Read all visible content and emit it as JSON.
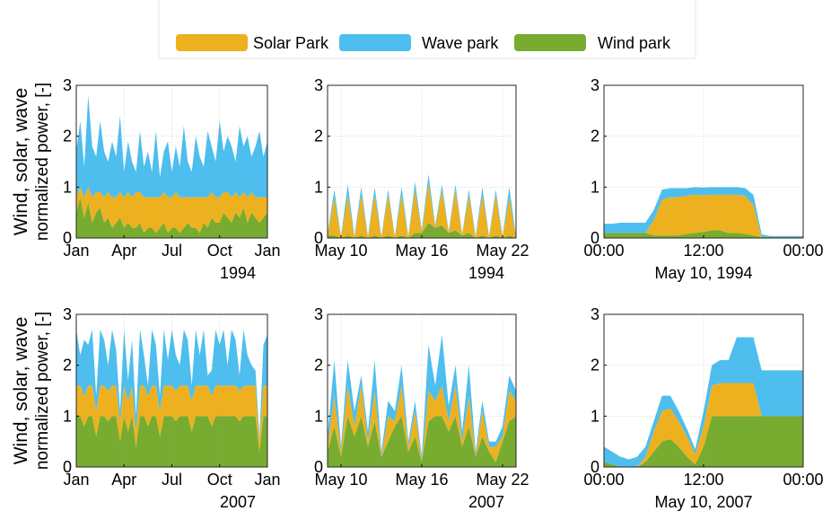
{
  "chart_data": [
    {
      "type": "stacked-area",
      "ylabel": [
        "Wind, solar, wave",
        "normalized power, [-]"
      ],
      "xlabel": "1994",
      "categories": [
        "Jan",
        null,
        null,
        null,
        null,
        null,
        null,
        null,
        null,
        null,
        null,
        null,
        "Apr",
        null,
        null,
        null,
        null,
        null,
        null,
        null,
        null,
        null,
        null,
        null,
        "Jul",
        null,
        null,
        null,
        null,
        null,
        null,
        null,
        null,
        null,
        null,
        null,
        "Oct",
        null,
        null,
        null,
        null,
        null,
        null,
        null,
        null,
        null,
        null,
        null,
        "Jan"
      ],
      "series": [
        {
          "name": "Solar Park",
          "color": "#EDB120",
          "values": [
            0.3,
            0.2,
            0.4,
            0.3,
            0.5,
            0.4,
            0.3,
            0.5,
            0.5,
            0.6,
            0.5,
            0.5,
            0.6,
            0.6,
            0.6,
            0.7,
            0.6,
            0.7,
            0.6,
            0.6,
            0.7,
            0.6,
            0.6,
            0.7,
            0.6,
            0.7,
            0.7,
            0.6,
            0.5,
            0.6,
            0.6,
            0.7,
            0.5,
            0.6,
            0.5,
            0.5,
            0.5,
            0.4,
            0.5,
            0.5,
            0.4,
            0.4,
            0.3,
            0.5,
            0.4,
            0.4,
            0.5,
            0.4,
            0.3
          ]
        },
        {
          "name": "Wave park",
          "color": "#4DBEEE",
          "values": [
            0.9,
            1.3,
            0.6,
            1.8,
            1.0,
            0.7,
            1.4,
            0.9,
            0.6,
            1.1,
            0.8,
            1.5,
            0.5,
            1.0,
            0.7,
            0.4,
            1.2,
            0.6,
            0.9,
            0.5,
            1.3,
            0.4,
            0.8,
            1.1,
            0.5,
            0.9,
            0.6,
            1.4,
            0.7,
            0.5,
            1.2,
            0.8,
            0.6,
            1.3,
            0.9,
            0.7,
            1.5,
            0.8,
            1.1,
            1.0,
            0.6,
            1.4,
            0.9,
            1.2,
            0.7,
            1.0,
            1.3,
            0.8,
            1.1
          ]
        },
        {
          "name": "Wind park",
          "color": "#77AC30",
          "values": [
            0.5,
            0.8,
            0.4,
            0.7,
            0.3,
            0.5,
            0.6,
            0.3,
            0.4,
            0.2,
            0.3,
            0.4,
            0.2,
            0.3,
            0.2,
            0.2,
            0.3,
            0.1,
            0.2,
            0.2,
            0.1,
            0.2,
            0.3,
            0.1,
            0.2,
            0.2,
            0.1,
            0.2,
            0.3,
            0.2,
            0.2,
            0.1,
            0.3,
            0.2,
            0.4,
            0.3,
            0.3,
            0.5,
            0.4,
            0.3,
            0.5,
            0.4,
            0.6,
            0.3,
            0.5,
            0.4,
            0.3,
            0.4,
            0.5
          ]
        }
      ],
      "ylim": [
        0,
        3
      ],
      "yticks": [
        0,
        1,
        2,
        3
      ],
      "grid": true
    },
    {
      "type": "stacked-area",
      "xlabel": "1994",
      "categories": [
        null,
        null,
        "May 10",
        null,
        null,
        null,
        null,
        null,
        null,
        null,
        null,
        null,
        null,
        null,
        "May 16",
        null,
        null,
        null,
        null,
        null,
        null,
        null,
        null,
        null,
        null,
        null,
        "May 22",
        null,
        null
      ],
      "series": [
        {
          "color": "#EDB120",
          "values": [
            0,
            0.75,
            0,
            0.8,
            0,
            0.8,
            0,
            0.8,
            0,
            0.8,
            0,
            0.8,
            0,
            0.85,
            0,
            0.8,
            0,
            0.7,
            0,
            0.8,
            0,
            0.75,
            0,
            0.8,
            0,
            0.8,
            0,
            0.75,
            0
          ]
        },
        {
          "color": "#4DBEEE",
          "values": [
            0.03,
            0.15,
            0.03,
            0.2,
            0.03,
            0.15,
            0.03,
            0.15,
            0.03,
            0.1,
            0.03,
            0.15,
            0.03,
            0.15,
            0.05,
            0.15,
            0.05,
            0.1,
            0.03,
            0.1,
            0.03,
            0.1,
            0.03,
            0.15,
            0.03,
            0.1,
            0.03,
            0.2,
            0.03
          ]
        },
        {
          "color": "#77AC30",
          "values": [
            0.05,
            0.05,
            0,
            0.05,
            0,
            0.05,
            0,
            0.05,
            0,
            0.05,
            0,
            0.05,
            0,
            0.1,
            0.1,
            0.3,
            0.2,
            0.25,
            0.1,
            0.15,
            0.05,
            0.1,
            0,
            0.05,
            0,
            0.05,
            0,
            0.05,
            0
          ]
        }
      ],
      "ylim": [
        0,
        3
      ],
      "yticks": [
        0,
        1,
        2,
        3
      ],
      "grid": true
    },
    {
      "type": "stacked-area",
      "xlabel": "May 10, 1994",
      "categories": [
        "00:00",
        null,
        null,
        null,
        null,
        null,
        null,
        null,
        null,
        null,
        null,
        null,
        "12:00",
        null,
        null,
        null,
        null,
        null,
        null,
        null,
        null,
        null,
        null,
        null,
        "00:00"
      ],
      "series": [
        {
          "color": "#EDB120",
          "values": [
            0,
            0,
            0,
            0,
            0,
            0,
            0.3,
            0.7,
            0.75,
            0.75,
            0.75,
            0.75,
            0.72,
            0.7,
            0.7,
            0.75,
            0.75,
            0.75,
            0.6,
            0,
            0,
            0,
            0,
            0,
            0
          ]
        },
        {
          "color": "#4DBEEE",
          "values": [
            0.18,
            0.18,
            0.2,
            0.2,
            0.2,
            0.2,
            0.2,
            0.2,
            0.18,
            0.18,
            0.15,
            0.15,
            0.15,
            0.15,
            0.15,
            0.15,
            0.15,
            0.15,
            0.2,
            0.05,
            0.02,
            0.02,
            0.02,
            0.02,
            0.02
          ]
        },
        {
          "color": "#77AC30",
          "values": [
            0.1,
            0.1,
            0.1,
            0.1,
            0.1,
            0.1,
            0.05,
            0.05,
            0.05,
            0.05,
            0.08,
            0.1,
            0.12,
            0.15,
            0.15,
            0.1,
            0.1,
            0.08,
            0.05,
            0.02,
            0.02,
            0.02,
            0.02,
            0.02,
            0.02
          ]
        }
      ],
      "ylim": [
        0,
        3
      ],
      "yticks": [
        0,
        1,
        2,
        3
      ],
      "grid": true
    },
    {
      "type": "stacked-area",
      "ylabel": [
        "Wind, solar, wave",
        "normalized power, [-]"
      ],
      "xlabel": "2007",
      "categories": [
        "Jan",
        null,
        null,
        null,
        null,
        null,
        null,
        null,
        null,
        null,
        null,
        null,
        "Apr",
        null,
        null,
        null,
        null,
        null,
        null,
        null,
        null,
        null,
        null,
        null,
        "Jul",
        null,
        null,
        null,
        null,
        null,
        null,
        null,
        null,
        null,
        null,
        null,
        "Oct",
        null,
        null,
        null,
        null,
        null,
        null,
        null,
        null,
        null,
        null,
        null,
        "Jan"
      ],
      "series": [
        {
          "color": "#EDB120",
          "values": [
            0.6,
            0.6,
            0.6,
            0.6,
            0.6,
            0.5,
            0.6,
            0.6,
            0.6,
            0.6,
            0.6,
            0.4,
            0.6,
            0.6,
            0.6,
            0.3,
            0.6,
            0.6,
            0.6,
            0.6,
            0.6,
            0.5,
            0.6,
            0.6,
            0.6,
            0.6,
            0.6,
            0.6,
            0.6,
            0.6,
            0.6,
            0.6,
            0.6,
            0.6,
            0.6,
            0.6,
            0.6,
            0.6,
            0.6,
            0.6,
            0.6,
            0.6,
            0.6,
            0.6,
            0.6,
            0.6,
            0.2,
            0.6,
            0.6
          ]
        },
        {
          "color": "#4DBEEE",
          "values": [
            1.1,
            0.6,
            1.1,
            0.8,
            1.1,
            0.3,
            1.1,
            0.9,
            0.5,
            1.1,
            0.7,
            0.2,
            1.1,
            0.4,
            0.9,
            0.3,
            1.1,
            0.6,
            0.2,
            1.1,
            0.8,
            0.3,
            1.1,
            0.5,
            1.1,
            0.7,
            0.4,
            1.1,
            0.9,
            0.3,
            1.1,
            0.6,
            1.1,
            0.2,
            0.5,
            1.1,
            0.8,
            1.1,
            0.4,
            1.1,
            0.9,
            0.3,
            1.1,
            0.6,
            0.4,
            0.3,
            0.1,
            0.8,
            1.0
          ]
        },
        {
          "color": "#77AC30",
          "values": [
            1.0,
            1.0,
            0.8,
            1.0,
            1.0,
            0.6,
            1.0,
            1.0,
            0.9,
            1.0,
            1.0,
            0.5,
            1.0,
            0.7,
            1.0,
            0.4,
            1.0,
            1.0,
            0.8,
            1.0,
            1.0,
            0.6,
            1.0,
            1.0,
            1.0,
            0.9,
            1.0,
            1.0,
            1.0,
            0.7,
            1.0,
            1.0,
            1.0,
            1.0,
            0.8,
            1.0,
            1.0,
            1.0,
            1.0,
            1.0,
            1.0,
            0.9,
            1.0,
            1.0,
            1.0,
            1.0,
            0.3,
            1.0,
            1.0
          ]
        }
      ],
      "ylim": [
        0,
        3
      ],
      "yticks": [
        0,
        1,
        2,
        3
      ],
      "grid": true
    },
    {
      "type": "stacked-area",
      "xlabel": "2007",
      "categories": [
        null,
        null,
        "May 10",
        null,
        null,
        null,
        null,
        null,
        null,
        null,
        null,
        null,
        null,
        null,
        "May 16",
        null,
        null,
        null,
        null,
        null,
        null,
        null,
        null,
        null,
        null,
        null,
        "May 22",
        null,
        null
      ],
      "series": [
        {
          "color": "#EDB120",
          "values": [
            0.1,
            0.6,
            0.1,
            0.6,
            0.2,
            0.6,
            0.1,
            0.6,
            0,
            0.5,
            0.1,
            0.6,
            0.1,
            0.5,
            0,
            0.6,
            0.3,
            0.6,
            0.2,
            0.6,
            0.1,
            0.6,
            0,
            0.5,
            0.1,
            0.3,
            0.1,
            0.6,
            0.3
          ]
        },
        {
          "color": "#4DBEEE",
          "values": [
            0.2,
            0.7,
            0.1,
            0.5,
            0.3,
            0.2,
            0.2,
            0.6,
            0.1,
            0.3,
            0.2,
            0.4,
            0.1,
            0.2,
            0.1,
            0.9,
            0.3,
            1.0,
            0.3,
            0.4,
            0.2,
            0.6,
            0.1,
            0.2,
            0.1,
            0.1,
            0.2,
            0.3,
            0.2
          ]
        },
        {
          "color": "#77AC30",
          "values": [
            0.3,
            0.8,
            0.2,
            1.0,
            0.6,
            1.0,
            0.4,
            0.9,
            0.2,
            0.5,
            0.8,
            1.0,
            0.3,
            0.6,
            0.1,
            0.9,
            1.0,
            1.0,
            0.7,
            1.0,
            0.4,
            0.8,
            0.2,
            0.6,
            0.3,
            0.1,
            0.5,
            0.9,
            1.0
          ]
        }
      ],
      "ylim": [
        0,
        3
      ],
      "yticks": [
        0,
        1,
        2,
        3
      ],
      "grid": true
    },
    {
      "type": "stacked-area",
      "xlabel": "May 10, 2007",
      "categories": [
        "00:00",
        null,
        null,
        null,
        null,
        null,
        null,
        null,
        null,
        null,
        null,
        null,
        "12:00",
        null,
        null,
        null,
        null,
        null,
        null,
        null,
        null,
        null,
        null,
        null,
        "00:00"
      ],
      "series": [
        {
          "color": "#EDB120",
          "values": [
            0,
            0,
            0,
            0,
            0,
            0.1,
            0.4,
            0.6,
            0.6,
            0.5,
            0.4,
            0.2,
            0.4,
            0.6,
            0.65,
            0.65,
            0.65,
            0.65,
            0.65,
            0,
            0,
            0,
            0,
            0,
            0
          ]
        },
        {
          "color": "#4DBEEE",
          "values": [
            0.3,
            0.25,
            0.2,
            0.15,
            0.2,
            0.2,
            0.2,
            0.3,
            0.25,
            0.2,
            0.15,
            0.1,
            0.3,
            0.4,
            0.45,
            0.45,
            0.9,
            0.9,
            0.9,
            0.9,
            0.9,
            0.9,
            0.9,
            0.9,
            0.9
          ]
        },
        {
          "color": "#77AC30",
          "values": [
            0.1,
            0.05,
            0,
            0,
            0,
            0.1,
            0.3,
            0.5,
            0.55,
            0.4,
            0.2,
            0.05,
            0.4,
            1.0,
            1.0,
            1.0,
            1.0,
            1.0,
            1.0,
            1.0,
            1.0,
            1.0,
            1.0,
            1.0,
            1.0
          ]
        }
      ],
      "ylim": [
        0,
        3
      ],
      "yticks": [
        0,
        1,
        2,
        3
      ],
      "grid": true
    }
  ]
}
